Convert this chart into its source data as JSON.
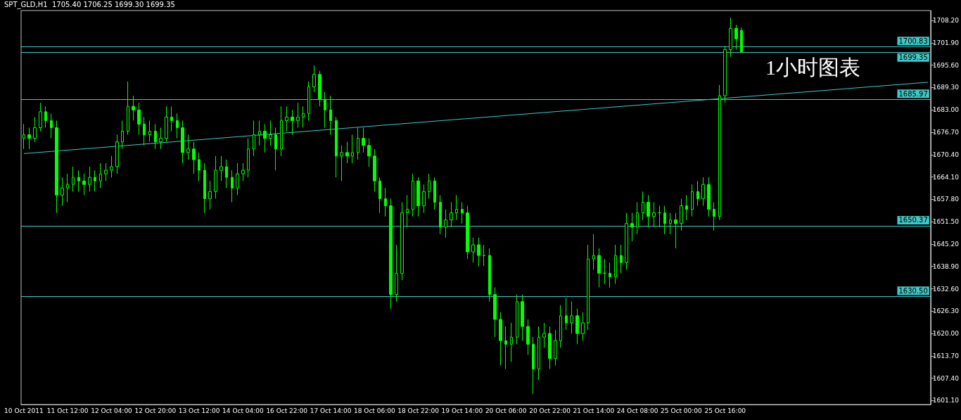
{
  "chart_data": {
    "type": "candlestick",
    "title": "SPT_GLD,H1  1705.40 1706.25 1699.30 1699.35",
    "annotations": [
      "1小时图表"
    ],
    "categories": [
      "10 Oct 2011",
      null,
      null,
      null,
      null,
      null,
      null,
      null,
      "11 Oct 12:00",
      null,
      null,
      null,
      null,
      null,
      null,
      null,
      "12 Oct 04:00",
      null,
      null,
      null,
      null,
      null,
      null,
      null,
      "12 Oct 20:00",
      null,
      null,
      null,
      null,
      null,
      null,
      null,
      "13 Oct 12:00",
      null,
      null,
      null,
      null,
      null,
      null,
      null,
      "14 Oct 04:00",
      null,
      null,
      null,
      null,
      null,
      null,
      null,
      "16 Oct 22:00",
      null,
      null,
      null,
      null,
      null,
      null,
      null,
      "17 Oct 14:00",
      null,
      null,
      null,
      null,
      null,
      null,
      null,
      "18 Oct 06:00",
      null,
      null,
      null,
      null,
      null,
      null,
      null,
      "18 Oct 22:00",
      null,
      null,
      null,
      null,
      null,
      null,
      null,
      "19 Oct 14:00",
      null,
      null,
      null,
      null,
      null,
      null,
      null,
      "20 Oct 06:00",
      null,
      null,
      null,
      null,
      null,
      null,
      null,
      "20 Oct 22:00",
      null,
      null,
      null,
      null,
      null,
      null,
      null,
      "21 Oct 14:00",
      null,
      null,
      null,
      null,
      null,
      null,
      null,
      "24 Oct 08:00",
      null,
      null,
      null,
      null,
      null,
      null,
      null,
      "25 Oct 00:00",
      null,
      null,
      null,
      null,
      null,
      null,
      null,
      "25 Oct 16:00",
      null,
      null,
      null,
      null,
      null,
      null,
      null,
      null,
      null,
      null,
      null,
      null,
      null,
      null,
      null,
      null,
      null,
      null,
      null,
      null,
      null,
      null,
      null,
      null,
      null,
      null,
      null,
      null,
      null,
      null,
      null,
      null,
      null,
      null,
      null,
      null,
      null
    ],
    "color": "#00ff00",
    "ohlc": [
      [
        1675,
        1679,
        1672,
        1676
      ],
      [
        1676,
        1678,
        1672,
        1675
      ],
      [
        1675,
        1681,
        1674,
        1678
      ],
      [
        1678,
        1685,
        1677,
        1682.5
      ],
      [
        1682.5,
        1684,
        1678,
        1680
      ],
      [
        1680,
        1682,
        1675,
        1678
      ],
      [
        1678,
        1680,
        1654,
        1659
      ],
      [
        1659,
        1664,
        1656,
        1661
      ],
      [
        1661,
        1665,
        1657,
        1662
      ],
      [
        1662,
        1667,
        1660,
        1664
      ],
      [
        1664,
        1666,
        1660,
        1663
      ],
      [
        1663,
        1665,
        1659,
        1662
      ],
      [
        1662,
        1667,
        1660,
        1664
      ],
      [
        1664,
        1666,
        1660,
        1663
      ],
      [
        1663,
        1668,
        1661,
        1665
      ],
      [
        1665,
        1668,
        1663,
        1666
      ],
      [
        1666,
        1670,
        1664,
        1667
      ],
      [
        1667,
        1676,
        1665,
        1674
      ],
      [
        1674,
        1680,
        1672,
        1677
      ],
      [
        1677,
        1691,
        1676,
        1684
      ],
      [
        1684,
        1687,
        1680,
        1683
      ],
      [
        1683,
        1685,
        1676,
        1679
      ],
      [
        1679,
        1681,
        1673,
        1676
      ],
      [
        1676,
        1680,
        1674,
        1677
      ],
      [
        1677,
        1679,
        1672,
        1674
      ],
      [
        1674,
        1678,
        1672,
        1675
      ],
      [
        1675,
        1684,
        1674,
        1681
      ],
      [
        1681,
        1684,
        1677,
        1680
      ],
      [
        1680,
        1682,
        1675,
        1678
      ],
      [
        1678,
        1680,
        1668,
        1671
      ],
      [
        1671,
        1676,
        1669,
        1672
      ],
      [
        1672,
        1674,
        1665,
        1669
      ],
      [
        1669,
        1671,
        1663,
        1666
      ],
      [
        1666,
        1668,
        1654,
        1658
      ],
      [
        1658,
        1663,
        1655,
        1660
      ],
      [
        1660,
        1670,
        1658,
        1666
      ],
      [
        1666,
        1670,
        1663,
        1667
      ],
      [
        1667,
        1669,
        1661,
        1664
      ],
      [
        1664,
        1666,
        1657,
        1661
      ],
      [
        1661,
        1668,
        1659,
        1665
      ],
      [
        1665,
        1668,
        1663,
        1666
      ],
      [
        1666,
        1675,
        1664,
        1672
      ],
      [
        1672,
        1680,
        1670,
        1676
      ],
      [
        1676,
        1680,
        1673,
        1677
      ],
      [
        1677,
        1679,
        1671,
        1675
      ],
      [
        1675,
        1680,
        1673,
        1676
      ],
      [
        1676,
        1678,
        1666,
        1672
      ],
      [
        1672,
        1684,
        1670,
        1680
      ],
      [
        1680,
        1684,
        1677,
        1681
      ],
      [
        1681,
        1683,
        1676,
        1680
      ],
      [
        1680,
        1685,
        1678,
        1681
      ],
      [
        1681,
        1684,
        1678,
        1682
      ],
      [
        1682,
        1691,
        1680,
        1689.5
      ],
      [
        1689.5,
        1695.5,
        1688,
        1693
      ],
      [
        1693,
        1694,
        1684,
        1686
      ],
      [
        1686,
        1688,
        1678,
        1683
      ],
      [
        1683,
        1687,
        1676,
        1680
      ],
      [
        1680,
        1681,
        1664,
        1670
      ],
      [
        1670,
        1673,
        1663,
        1671
      ],
      [
        1671,
        1674,
        1668,
        1670
      ],
      [
        1670,
        1676,
        1668,
        1671
      ],
      [
        1671,
        1678,
        1669,
        1675
      ],
      [
        1675,
        1678,
        1671,
        1673
      ],
      [
        1673,
        1675,
        1667,
        1670
      ],
      [
        1670,
        1672,
        1660,
        1663
      ],
      [
        1663,
        1664,
        1654,
        1658
      ],
      [
        1658,
        1661,
        1653,
        1656
      ],
      [
        1656,
        1658,
        1627,
        1631
      ],
      [
        1631,
        1645,
        1629,
        1637
      ],
      [
        1637,
        1657,
        1635,
        1654
      ],
      [
        1654,
        1659,
        1650,
        1655
      ],
      [
        1655,
        1665,
        1653,
        1663
      ],
      [
        1663,
        1664,
        1653,
        1656
      ],
      [
        1656,
        1662,
        1654,
        1660
      ],
      [
        1660,
        1665,
        1658,
        1663
      ],
      [
        1663,
        1664,
        1655,
        1657
      ],
      [
        1657,
        1659,
        1648,
        1650
      ],
      [
        1650,
        1655,
        1647,
        1652
      ],
      [
        1652,
        1657,
        1650,
        1654
      ],
      [
        1654,
        1659,
        1652,
        1655
      ],
      [
        1655,
        1657,
        1651,
        1654
      ],
      [
        1654,
        1656,
        1641,
        1643
      ],
      [
        1643,
        1647,
        1640,
        1645
      ],
      [
        1645,
        1647,
        1639,
        1642
      ],
      [
        1642,
        1645,
        1639,
        1642
      ],
      [
        1642,
        1644,
        1629,
        1631
      ],
      [
        1631,
        1633,
        1619,
        1624
      ],
      [
        1624,
        1626,
        1611,
        1618
      ],
      [
        1618,
        1622,
        1610,
        1617
      ],
      [
        1617,
        1623,
        1612,
        1619
      ],
      [
        1619,
        1631,
        1617,
        1629
      ],
      [
        1629,
        1631,
        1618,
        1622
      ],
      [
        1622,
        1624,
        1614,
        1617
      ],
      [
        1617,
        1619,
        1603,
        1610
      ],
      [
        1610,
        1622,
        1607,
        1619
      ],
      [
        1619,
        1623,
        1616,
        1620
      ],
      [
        1620,
        1622,
        1610,
        1613
      ],
      [
        1613,
        1621,
        1611,
        1618
      ],
      [
        1618,
        1628,
        1616,
        1625
      ],
      [
        1625,
        1630,
        1621,
        1623
      ],
      [
        1623,
        1629,
        1620,
        1625
      ],
      [
        1625,
        1627,
        1617,
        1620
      ],
      [
        1620,
        1626,
        1618,
        1623
      ],
      [
        1623,
        1645,
        1621,
        1641
      ],
      [
        1641,
        1648,
        1638,
        1642
      ],
      [
        1642,
        1644,
        1633,
        1637
      ],
      [
        1637,
        1641,
        1634,
        1637
      ],
      [
        1637,
        1640,
        1633,
        1636
      ],
      [
        1636,
        1645,
        1634,
        1642
      ],
      [
        1642,
        1645,
        1637,
        1640
      ],
      [
        1640,
        1654,
        1638,
        1651
      ],
      [
        1651,
        1654,
        1646,
        1650
      ],
      [
        1650,
        1657,
        1648,
        1654
      ],
      [
        1654,
        1660,
        1652,
        1657
      ],
      [
        1657,
        1659,
        1650,
        1653
      ],
      [
        1653,
        1657,
        1650,
        1654
      ],
      [
        1654,
        1656,
        1650,
        1654
      ],
      [
        1654,
        1656,
        1648,
        1651
      ],
      [
        1651,
        1654,
        1648,
        1652
      ],
      [
        1652,
        1654,
        1644,
        1651
      ],
      [
        1651,
        1658,
        1649,
        1656
      ],
      [
        1656,
        1659,
        1652,
        1655
      ],
      [
        1655,
        1662,
        1653,
        1660
      ],
      [
        1660,
        1663,
        1656,
        1658
      ],
      [
        1658,
        1664,
        1656,
        1662
      ],
      [
        1662,
        1664,
        1653,
        1655
      ],
      [
        1655,
        1657,
        1649,
        1653
      ],
      [
        1653,
        1690,
        1652,
        1687
      ],
      [
        1687,
        1701,
        1685,
        1700
      ],
      [
        1700,
        1709,
        1698,
        1706
      ],
      [
        1706,
        1707,
        1700,
        1703
      ],
      [
        1705.4,
        1706.25,
        1699.3,
        1699.35
      ],
      null,
      null,
      null,
      null,
      null,
      null,
      null,
      null,
      null,
      null,
      null,
      null,
      null,
      null,
      null,
      null,
      null,
      null,
      null,
      null,
      null,
      null,
      null,
      null,
      null,
      null,
      null,
      null,
      null,
      null,
      null,
      null,
      null,
      null
    ],
    "series": [
      {
        "type": "line",
        "color": "#40c8c8",
        "values": [
          1670.7,
          null,
          null,
          null,
          null,
          null,
          null,
          null,
          null,
          null,
          null,
          null,
          null,
          null,
          null,
          null,
          null,
          null,
          null,
          null,
          null,
          null,
          null,
          null,
          null,
          null,
          null,
          null,
          null,
          null,
          null,
          null,
          null,
          null,
          null,
          null,
          null,
          null,
          null,
          null,
          null,
          null,
          null,
          null,
          null,
          null,
          null,
          null,
          null,
          null,
          null,
          null,
          null,
          null,
          null,
          null,
          null,
          null,
          null,
          null,
          null,
          null,
          null,
          null,
          null,
          null,
          null,
          null,
          null,
          null,
          null,
          null,
          null,
          null,
          null,
          null,
          null,
          null,
          null,
          null,
          null,
          null,
          null,
          null,
          null,
          null,
          null,
          null,
          null,
          null,
          null,
          null,
          null,
          null,
          null,
          null,
          null,
          null,
          null,
          null,
          null,
          null,
          null,
          null,
          null,
          null,
          null,
          null,
          null,
          null,
          null,
          null,
          null,
          null,
          null,
          null,
          null,
          null,
          null,
          null,
          null,
          null,
          null,
          null,
          null,
          null,
          null,
          null,
          null,
          null,
          null,
          null,
          null,
          null,
          null,
          null,
          null,
          null,
          null,
          null,
          null,
          null,
          null,
          null,
          null,
          null,
          null,
          null,
          null,
          null,
          null,
          null,
          null,
          null,
          null,
          null,
          null,
          null,
          null,
          null,
          null,
          null,
          null,
          null,
          null,
          1690.8
        ]
      }
    ],
    "ylim": [
      1600,
      1711
    ],
    "yticks": [
      {
        "value": 1708.2,
        "label": "1708.20"
      },
      {
        "value": 1701.9,
        "label": "1701.90"
      },
      {
        "value": 1695.6,
        "label": "1695.60"
      },
      {
        "value": 1689.3,
        "label": "1689.30"
      },
      {
        "value": 1683,
        "label": "1683.00"
      },
      {
        "value": 1676.7,
        "label": "1676.70"
      },
      {
        "value": 1670.4,
        "label": "1670.40"
      },
      {
        "value": 1664.1,
        "label": "1664.10"
      },
      {
        "value": 1657.8,
        "label": "1657.80"
      },
      {
        "value": 1651.5,
        "label": "1651.50"
      },
      {
        "value": 1645.2,
        "label": "1645.20"
      },
      {
        "value": 1638.9,
        "label": "1638.90"
      },
      {
        "value": 1632.6,
        "label": "1632.60"
      },
      {
        "value": 1626.3,
        "label": "1626.30"
      },
      {
        "value": 1620,
        "label": "1620.00"
      },
      {
        "value": 1613.7,
        "label": "1613.70"
      },
      {
        "value": 1607.4,
        "label": "1607.40"
      },
      {
        "value": 1601.1,
        "label": "1601.10"
      }
    ],
    "ref_lines": [
      {
        "axis": "y",
        "value": 1699.35,
        "label": "1699.35",
        "color": "#40c8c8"
      },
      {
        "axis": "y",
        "value": 1700.83,
        "label": "1700.83",
        "color": "#40c8c8"
      },
      {
        "axis": "y",
        "value": 1685.97,
        "label": "1685.97",
        "color": "#40c8c8"
      },
      {
        "axis": "y",
        "value": 1650.37,
        "label": "1650.37",
        "color": "#40c8c8"
      },
      {
        "axis": "y",
        "value": 1630.5,
        "label": "1630.50",
        "color": "#40c8c8"
      }
    ],
    "grid": false
  }
}
